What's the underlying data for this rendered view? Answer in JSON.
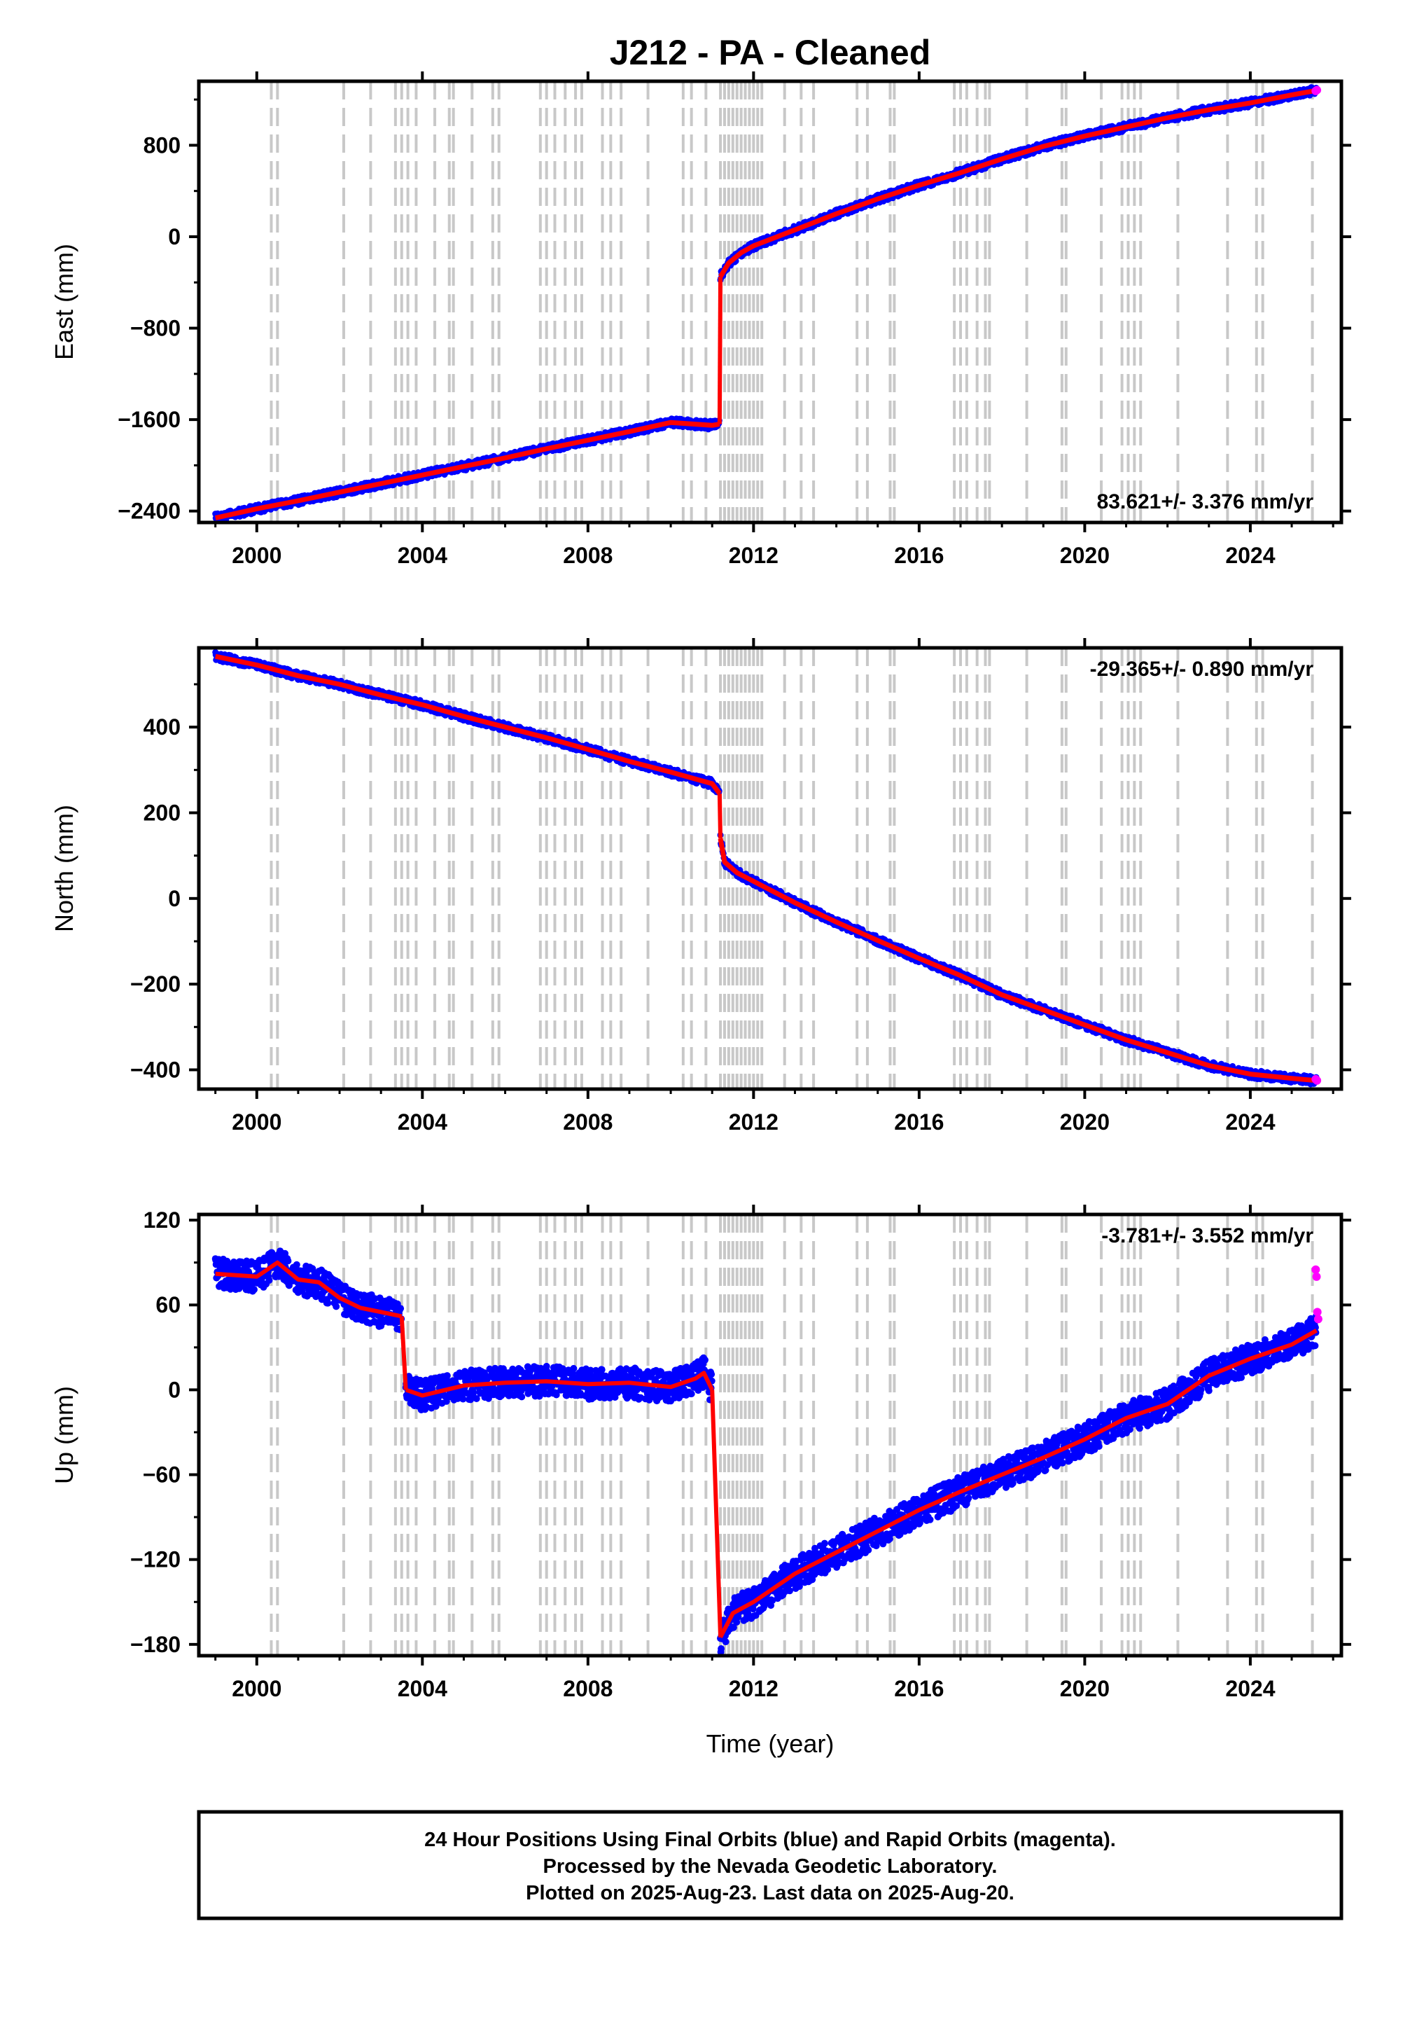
{
  "title": "J212  - PA - Cleaned",
  "xlabel": "Time (year)",
  "xticks": [
    2000,
    2004,
    2008,
    2012,
    2016,
    2020,
    2024
  ],
  "footer": {
    "line1": "24 Hour Positions Using Final Orbits (blue) and Rapid Orbits (magenta).",
    "line2": "Processed by the Nevada Geodetic Laboratory.",
    "line3": "Plotted on 2025-Aug-23. Last data on 2025-Aug-20."
  },
  "colors": {
    "final": "#0000ff",
    "rapid": "#ff00ff",
    "model": "#ff0000",
    "steps": "#c8c8c8"
  },
  "chart_data": [
    {
      "type": "scatter",
      "panel": "east",
      "ylabel": "East (mm)",
      "rate_label": "83.621+/- 3.376 mm/yr",
      "rate_position": "bottom-right",
      "xlim": [
        1998.6,
        2026.2
      ],
      "ylim": [
        -2500,
        1360
      ],
      "yticks": [
        -2400,
        -1600,
        -800,
        0,
        800
      ],
      "series": [
        {
          "x": [
            1999.0,
            2000.0,
            2001.0,
            2002.0,
            2003.0,
            2004.0,
            2005.0,
            2006.0,
            2007.0,
            2008.0,
            2009.0,
            2010.0,
            2011.0,
            2011.18
          ],
          "y": [
            -2460,
            -2380,
            -2310,
            -2235,
            -2160,
            -2085,
            -2010,
            -1935,
            -1855,
            -1780,
            -1705,
            -1625,
            -1650,
            -1640
          ]
        },
        {
          "x": [
            2011.2,
            2011.4,
            2011.7,
            2012.0,
            2012.5,
            2013.0,
            2014.0,
            2015.0,
            2016.0,
            2017.0,
            2018.0,
            2019.0,
            2020.0,
            2021.0,
            2022.0,
            2023.0,
            2024.0,
            2025.0,
            2025.6
          ],
          "y": [
            -350,
            -230,
            -140,
            -80,
            -10,
            60,
            200,
            330,
            450,
            560,
            680,
            790,
            880,
            960,
            1040,
            1110,
            1170,
            1240,
            1280
          ]
        }
      ],
      "rapid": {
        "x": [
          2025.58,
          2025.61
        ],
        "y": [
          1275,
          1283
        ]
      }
    },
    {
      "type": "scatter",
      "panel": "north",
      "ylabel": "North (mm)",
      "rate_label": "-29.365+/- 0.890 mm/yr",
      "rate_position": "top-right",
      "xlim": [
        1998.6,
        2026.2
      ],
      "ylim": [
        -445,
        585
      ],
      "yticks": [
        -400,
        -200,
        0,
        200,
        400
      ],
      "series": [
        {
          "x": [
            1999.0,
            2000.0,
            2001.0,
            2002.0,
            2003.0,
            2004.0,
            2005.0,
            2006.0,
            2007.0,
            2008.0,
            2009.0,
            2010.0,
            2011.0,
            2011.18
          ],
          "y": [
            565,
            545,
            520,
            500,
            475,
            452,
            425,
            400,
            375,
            348,
            320,
            295,
            268,
            245
          ]
        },
        {
          "x": [
            2011.2,
            2011.3,
            2011.6,
            2012.0,
            2012.5,
            2013.0,
            2014.0,
            2015.0,
            2016.0,
            2017.0,
            2018.0,
            2019.0,
            2020.0,
            2021.0,
            2022.0,
            2023.0,
            2024.0,
            2025.0,
            2025.6
          ],
          "y": [
            140,
            85,
            60,
            40,
            15,
            -10,
            -55,
            -98,
            -140,
            -180,
            -225,
            -260,
            -295,
            -330,
            -360,
            -390,
            -410,
            -420,
            -425
          ]
        }
      ],
      "rapid": {
        "x": [
          2025.58,
          2025.61
        ],
        "y": [
          -422,
          -425
        ]
      }
    },
    {
      "type": "scatter",
      "panel": "up",
      "ylabel": "Up (mm)",
      "rate_label": "-3.781+/- 3.552 mm/yr",
      "rate_position": "top-right",
      "xlim": [
        1998.6,
        2026.2
      ],
      "ylim": [
        -188,
        124
      ],
      "yticks": [
        -180,
        -120,
        -60,
        0,
        60,
        120
      ],
      "series": [
        {
          "x": [
            1999.0,
            2000.0,
            2000.5,
            2001.0,
            2001.5,
            2002.0,
            2002.5,
            2003.0,
            2003.5
          ],
          "y": [
            82,
            80,
            90,
            78,
            76,
            65,
            58,
            55,
            52
          ]
        },
        {
          "x": [
            2003.6,
            2004.0,
            2005.0,
            2006.0,
            2007.0,
            2008.0,
            2009.0,
            2010.0,
            2010.6,
            2010.8,
            2011.0
          ],
          "y": [
            0,
            -4,
            3,
            5,
            6,
            4,
            5,
            2,
            8,
            12,
            0
          ]
        },
        {
          "x": [
            2011.2,
            2011.5,
            2012.0,
            2013.0,
            2014.0,
            2015.0,
            2016.0,
            2017.0,
            2018.0,
            2019.0,
            2020.0,
            2021.0,
            2022.0,
            2023.0,
            2024.0,
            2025.0,
            2025.6
          ],
          "y": [
            -175,
            -158,
            -150,
            -130,
            -115,
            -100,
            -85,
            -72,
            -60,
            -48,
            -35,
            -20,
            -10,
            10,
            22,
            32,
            42
          ]
        }
      ],
      "rapid": {
        "x": [
          2025.58,
          2025.6,
          2025.62,
          2025.64
        ],
        "y": [
          85,
          80,
          55,
          50
        ]
      }
    }
  ],
  "step_dates": [
    2000.35,
    2000.5,
    2002.1,
    2002.75,
    2003.35,
    2003.5,
    2003.65,
    2003.85,
    2004.3,
    2004.65,
    2004.75,
    2005.2,
    2005.7,
    2005.85,
    2006.85,
    2007.0,
    2007.2,
    2007.45,
    2007.7,
    2007.85,
    2008.35,
    2008.55,
    2008.8,
    2009.45,
    2010.3,
    2010.5,
    2010.85,
    2011.2,
    2011.3,
    2011.4,
    2011.5,
    2011.6,
    2011.7,
    2011.8,
    2011.9,
    2012.0,
    2012.1,
    2012.2,
    2012.75,
    2013.15,
    2013.45,
    2014.5,
    2014.75,
    2015.3,
    2015.4,
    2016.85,
    2017.0,
    2017.15,
    2017.4,
    2017.6,
    2017.7,
    2018.6,
    2019.45,
    2019.55,
    2020.4,
    2020.9,
    2021.05,
    2021.2,
    2021.35,
    2022.25,
    2023.45,
    2024.15,
    2024.3,
    2025.5
  ]
}
